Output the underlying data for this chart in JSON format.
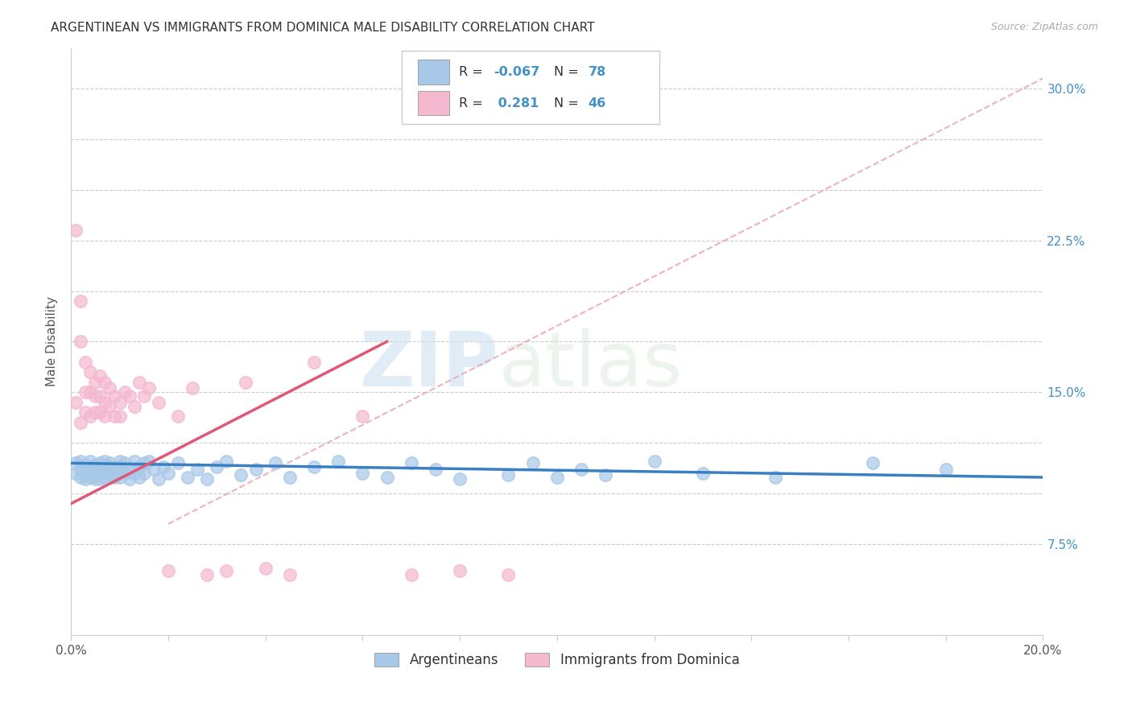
{
  "title": "ARGENTINEAN VS IMMIGRANTS FROM DOMINICA MALE DISABILITY CORRELATION CHART",
  "source": "Source: ZipAtlas.com",
  "ylabel": "Male Disability",
  "watermark_zip": "ZIP",
  "watermark_atlas": "atlas",
  "xmin": 0.0,
  "xmax": 0.2,
  "ymin": 0.03,
  "ymax": 0.32,
  "yticks": [
    0.075,
    0.1,
    0.125,
    0.15,
    0.175,
    0.2,
    0.225,
    0.25,
    0.275,
    0.3
  ],
  "ytick_labels": [
    "7.5%",
    "",
    "",
    "15.0%",
    "",
    "",
    "22.5%",
    "",
    "",
    "30.0%"
  ],
  "xticks": [
    0.0,
    0.02,
    0.04,
    0.06,
    0.08,
    0.1,
    0.12,
    0.14,
    0.16,
    0.18,
    0.2
  ],
  "xtick_labels": [
    "0.0%",
    "",
    "",
    "",
    "",
    "",
    "",
    "",
    "",
    "",
    "20.0%"
  ],
  "blue_color": "#a8c8e8",
  "pink_color": "#f4b8cf",
  "blue_line_color": "#3a7fc1",
  "pink_line_color": "#e05878",
  "dashed_line_color": "#e8a0b0",
  "argentinean_x": [
    0.001,
    0.001,
    0.002,
    0.002,
    0.002,
    0.003,
    0.003,
    0.003,
    0.003,
    0.004,
    0.004,
    0.004,
    0.004,
    0.004,
    0.005,
    0.005,
    0.005,
    0.005,
    0.006,
    0.006,
    0.006,
    0.006,
    0.007,
    0.007,
    0.007,
    0.007,
    0.008,
    0.008,
    0.008,
    0.009,
    0.009,
    0.009,
    0.01,
    0.01,
    0.01,
    0.01,
    0.011,
    0.011,
    0.012,
    0.012,
    0.013,
    0.013,
    0.014,
    0.014,
    0.015,
    0.015,
    0.016,
    0.017,
    0.018,
    0.019,
    0.02,
    0.022,
    0.024,
    0.026,
    0.028,
    0.03,
    0.032,
    0.035,
    0.038,
    0.042,
    0.045,
    0.05,
    0.055,
    0.06,
    0.065,
    0.07,
    0.075,
    0.08,
    0.09,
    0.095,
    0.1,
    0.105,
    0.11,
    0.12,
    0.13,
    0.145,
    0.165,
    0.18
  ],
  "argentinean_y": [
    0.115,
    0.11,
    0.112,
    0.108,
    0.116,
    0.109,
    0.114,
    0.107,
    0.113,
    0.111,
    0.116,
    0.108,
    0.113,
    0.11,
    0.114,
    0.109,
    0.107,
    0.112,
    0.115,
    0.11,
    0.107,
    0.113,
    0.116,
    0.111,
    0.108,
    0.114,
    0.112,
    0.109,
    0.115,
    0.11,
    0.108,
    0.113,
    0.116,
    0.111,
    0.108,
    0.113,
    0.115,
    0.11,
    0.112,
    0.107,
    0.116,
    0.11,
    0.113,
    0.108,
    0.115,
    0.11,
    0.116,
    0.112,
    0.107,
    0.113,
    0.11,
    0.115,
    0.108,
    0.112,
    0.107,
    0.113,
    0.116,
    0.109,
    0.112,
    0.115,
    0.108,
    0.113,
    0.116,
    0.11,
    0.108,
    0.115,
    0.112,
    0.107,
    0.109,
    0.115,
    0.108,
    0.112,
    0.109,
    0.116,
    0.11,
    0.108,
    0.115,
    0.112
  ],
  "dominica_x": [
    0.001,
    0.001,
    0.002,
    0.002,
    0.002,
    0.003,
    0.003,
    0.003,
    0.004,
    0.004,
    0.004,
    0.005,
    0.005,
    0.005,
    0.006,
    0.006,
    0.006,
    0.007,
    0.007,
    0.007,
    0.008,
    0.008,
    0.009,
    0.009,
    0.01,
    0.01,
    0.011,
    0.012,
    0.013,
    0.014,
    0.015,
    0.016,
    0.018,
    0.02,
    0.022,
    0.025,
    0.028,
    0.032,
    0.036,
    0.04,
    0.045,
    0.05,
    0.06,
    0.07,
    0.08,
    0.09
  ],
  "dominica_y": [
    0.23,
    0.145,
    0.195,
    0.175,
    0.135,
    0.165,
    0.15,
    0.14,
    0.16,
    0.15,
    0.138,
    0.155,
    0.148,
    0.14,
    0.158,
    0.148,
    0.14,
    0.155,
    0.145,
    0.138,
    0.152,
    0.143,
    0.148,
    0.138,
    0.145,
    0.138,
    0.15,
    0.148,
    0.143,
    0.155,
    0.148,
    0.152,
    0.145,
    0.062,
    0.138,
    0.152,
    0.06,
    0.062,
    0.155,
    0.063,
    0.06,
    0.165,
    0.138,
    0.06,
    0.062,
    0.06
  ],
  "blue_trendline_x": [
    0.0,
    0.2
  ],
  "blue_trendline_y": [
    0.115,
    0.108
  ],
  "pink_trendline_x": [
    0.0,
    0.065
  ],
  "pink_trendline_y": [
    0.095,
    0.175
  ],
  "dashed_trendline_x": [
    0.02,
    0.2
  ],
  "dashed_trendline_y": [
    0.085,
    0.305
  ]
}
